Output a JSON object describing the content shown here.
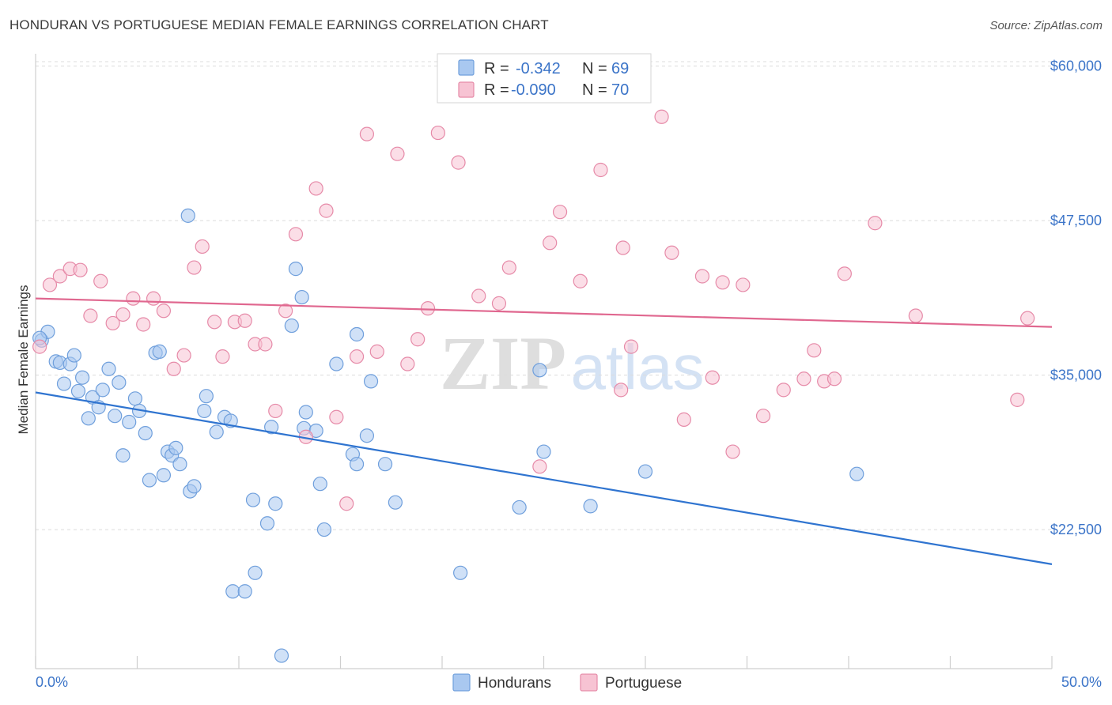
{
  "title": "HONDURAN VS PORTUGUESE MEDIAN FEMALE EARNINGS CORRELATION CHART",
  "source": "Source: ZipAtlas.com",
  "watermark": {
    "zip": "ZIP",
    "atlas": "atlas"
  },
  "legend_top": [
    {
      "r_label": "R =",
      "r_value": "-0.342",
      "n_label": "N =",
      "n_value": "69",
      "color": "#a9c8f0",
      "stroke": "#6f9fdc"
    },
    {
      "r_label": "R =",
      "r_value": "-0.090",
      "n_label": "N =",
      "n_value": "70",
      "color": "#f7c3d3",
      "stroke": "#e68aa8"
    }
  ],
  "legend_bottom": [
    "Hondurans",
    "Portuguese"
  ],
  "chart_data": {
    "type": "scatter",
    "ylabel": "Median Female Earnings",
    "xlim": [
      0,
      50
    ],
    "ylim": [
      11250,
      61000
    ],
    "y_ticks": [
      22500,
      35000,
      47500,
      60000
    ],
    "y_tick_labels": [
      "$22,500",
      "$35,000",
      "$47,500",
      "$60,000"
    ],
    "x_tick_labels": [
      "0.0%",
      "50.0%"
    ],
    "series": [
      {
        "name": "Hondurans",
        "color": "#a9c8f0",
        "stroke": "#6f9fdc",
        "line_color": "#2f74d0",
        "trend": [
          [
            0,
            33600
          ],
          [
            50,
            19700
          ]
        ],
        "points": [
          [
            0.3,
            37.8
          ],
          [
            0.6,
            38.5
          ],
          [
            1.0,
            36.1
          ],
          [
            1.2,
            36.0
          ],
          [
            1.4,
            34.3
          ],
          [
            1.7,
            35.9
          ],
          [
            1.9,
            36.6
          ],
          [
            2.1,
            33.7
          ],
          [
            2.3,
            34.8
          ],
          [
            2.6,
            31.5
          ],
          [
            2.8,
            33.2
          ],
          [
            3.1,
            32.4
          ],
          [
            3.3,
            33.8
          ],
          [
            3.6,
            35.5
          ],
          [
            3.9,
            31.7
          ],
          [
            4.1,
            34.4
          ],
          [
            4.3,
            28.5
          ],
          [
            4.6,
            31.2
          ],
          [
            4.9,
            33.1
          ],
          [
            5.1,
            32.1
          ],
          [
            5.4,
            30.3
          ],
          [
            5.6,
            26.5
          ],
          [
            5.9,
            36.8
          ],
          [
            6.1,
            36.9
          ],
          [
            6.3,
            26.9
          ],
          [
            6.5,
            28.8
          ],
          [
            6.7,
            28.5
          ],
          [
            6.9,
            29.1
          ],
          [
            7.1,
            27.8
          ],
          [
            7.6,
            25.6
          ],
          [
            7.5,
            47.9
          ],
          [
            7.8,
            26.0
          ],
          [
            8.3,
            32.1
          ],
          [
            8.4,
            33.3
          ],
          [
            8.9,
            30.4
          ],
          [
            9.3,
            31.6
          ],
          [
            9.6,
            31.3
          ],
          [
            9.7,
            17.5
          ],
          [
            10.3,
            17.5
          ],
          [
            10.7,
            24.9
          ],
          [
            10.8,
            19.0
          ],
          [
            11.4,
            23.0
          ],
          [
            11.6,
            30.8
          ],
          [
            11.8,
            24.6
          ],
          [
            12.1,
            12.3
          ],
          [
            12.6,
            39.0
          ],
          [
            12.8,
            43.6
          ],
          [
            13.1,
            41.3
          ],
          [
            13.2,
            30.7
          ],
          [
            13.3,
            32.0
          ],
          [
            13.8,
            30.5
          ],
          [
            14.0,
            26.2
          ],
          [
            14.2,
            22.5
          ],
          [
            14.8,
            35.9
          ],
          [
            15.8,
            38.3
          ],
          [
            15.6,
            28.6
          ],
          [
            15.8,
            27.8
          ],
          [
            16.3,
            30.1
          ],
          [
            16.5,
            34.5
          ],
          [
            17.2,
            27.8
          ],
          [
            17.7,
            24.7
          ],
          [
            20.9,
            19.0
          ],
          [
            23.8,
            24.3
          ],
          [
            24.8,
            35.4
          ],
          [
            25.0,
            28.8
          ],
          [
            27.3,
            24.4
          ],
          [
            30.0,
            27.2
          ],
          [
            40.4,
            27.0
          ],
          [
            0.2,
            38.0
          ]
        ]
      },
      {
        "name": "Portuguese",
        "color": "#f7c3d3",
        "stroke": "#e68aa8",
        "line_color": "#e0678f",
        "trend": [
          [
            0,
            41200
          ],
          [
            50,
            38900
          ]
        ],
        "points": [
          [
            0.2,
            37.3
          ],
          [
            0.7,
            42.3
          ],
          [
            1.2,
            43.0
          ],
          [
            1.7,
            43.6
          ],
          [
            2.2,
            43.5
          ],
          [
            2.7,
            39.8
          ],
          [
            3.2,
            42.6
          ],
          [
            3.8,
            39.2
          ],
          [
            4.3,
            39.9
          ],
          [
            4.8,
            41.2
          ],
          [
            5.3,
            39.1
          ],
          [
            5.8,
            41.2
          ],
          [
            6.3,
            40.2
          ],
          [
            6.8,
            35.5
          ],
          [
            7.3,
            36.6
          ],
          [
            7.8,
            43.7
          ],
          [
            8.2,
            45.4
          ],
          [
            8.8,
            39.3
          ],
          [
            9.2,
            36.5
          ],
          [
            9.8,
            39.3
          ],
          [
            10.3,
            39.4
          ],
          [
            10.8,
            37.5
          ],
          [
            11.3,
            37.5
          ],
          [
            11.8,
            32.1
          ],
          [
            12.3,
            40.2
          ],
          [
            12.8,
            46.4
          ],
          [
            13.3,
            30.0
          ],
          [
            13.8,
            50.1
          ],
          [
            14.3,
            48.3
          ],
          [
            14.8,
            31.6
          ],
          [
            15.3,
            24.6
          ],
          [
            15.8,
            36.5
          ],
          [
            16.3,
            54.5
          ],
          [
            16.8,
            36.9
          ],
          [
            17.8,
            52.9
          ],
          [
            18.3,
            35.9
          ],
          [
            18.8,
            37.9
          ],
          [
            19.3,
            40.4
          ],
          [
            19.8,
            54.6
          ],
          [
            20.8,
            52.2
          ],
          [
            21.8,
            41.4
          ],
          [
            22.8,
            40.8
          ],
          [
            23.3,
            43.7
          ],
          [
            24.8,
            27.6
          ],
          [
            25.3,
            45.7
          ],
          [
            25.8,
            48.2
          ],
          [
            26.8,
            42.6
          ],
          [
            27.8,
            51.6
          ],
          [
            28.8,
            33.8
          ],
          [
            28.9,
            45.3
          ],
          [
            29.3,
            37.3
          ],
          [
            30.8,
            55.9
          ],
          [
            31.3,
            44.9
          ],
          [
            31.9,
            31.4
          ],
          [
            32.8,
            43.0
          ],
          [
            33.3,
            34.8
          ],
          [
            33.8,
            42.5
          ],
          [
            34.3,
            28.8
          ],
          [
            34.8,
            42.3
          ],
          [
            35.8,
            31.7
          ],
          [
            36.8,
            33.8
          ],
          [
            37.8,
            34.7
          ],
          [
            38.3,
            37.0
          ],
          [
            38.8,
            34.5
          ],
          [
            39.3,
            34.7
          ],
          [
            39.8,
            43.2
          ],
          [
            41.3,
            47.3
          ],
          [
            43.3,
            39.8
          ],
          [
            48.3,
            33.0
          ],
          [
            48.8,
            39.6
          ]
        ]
      }
    ]
  }
}
